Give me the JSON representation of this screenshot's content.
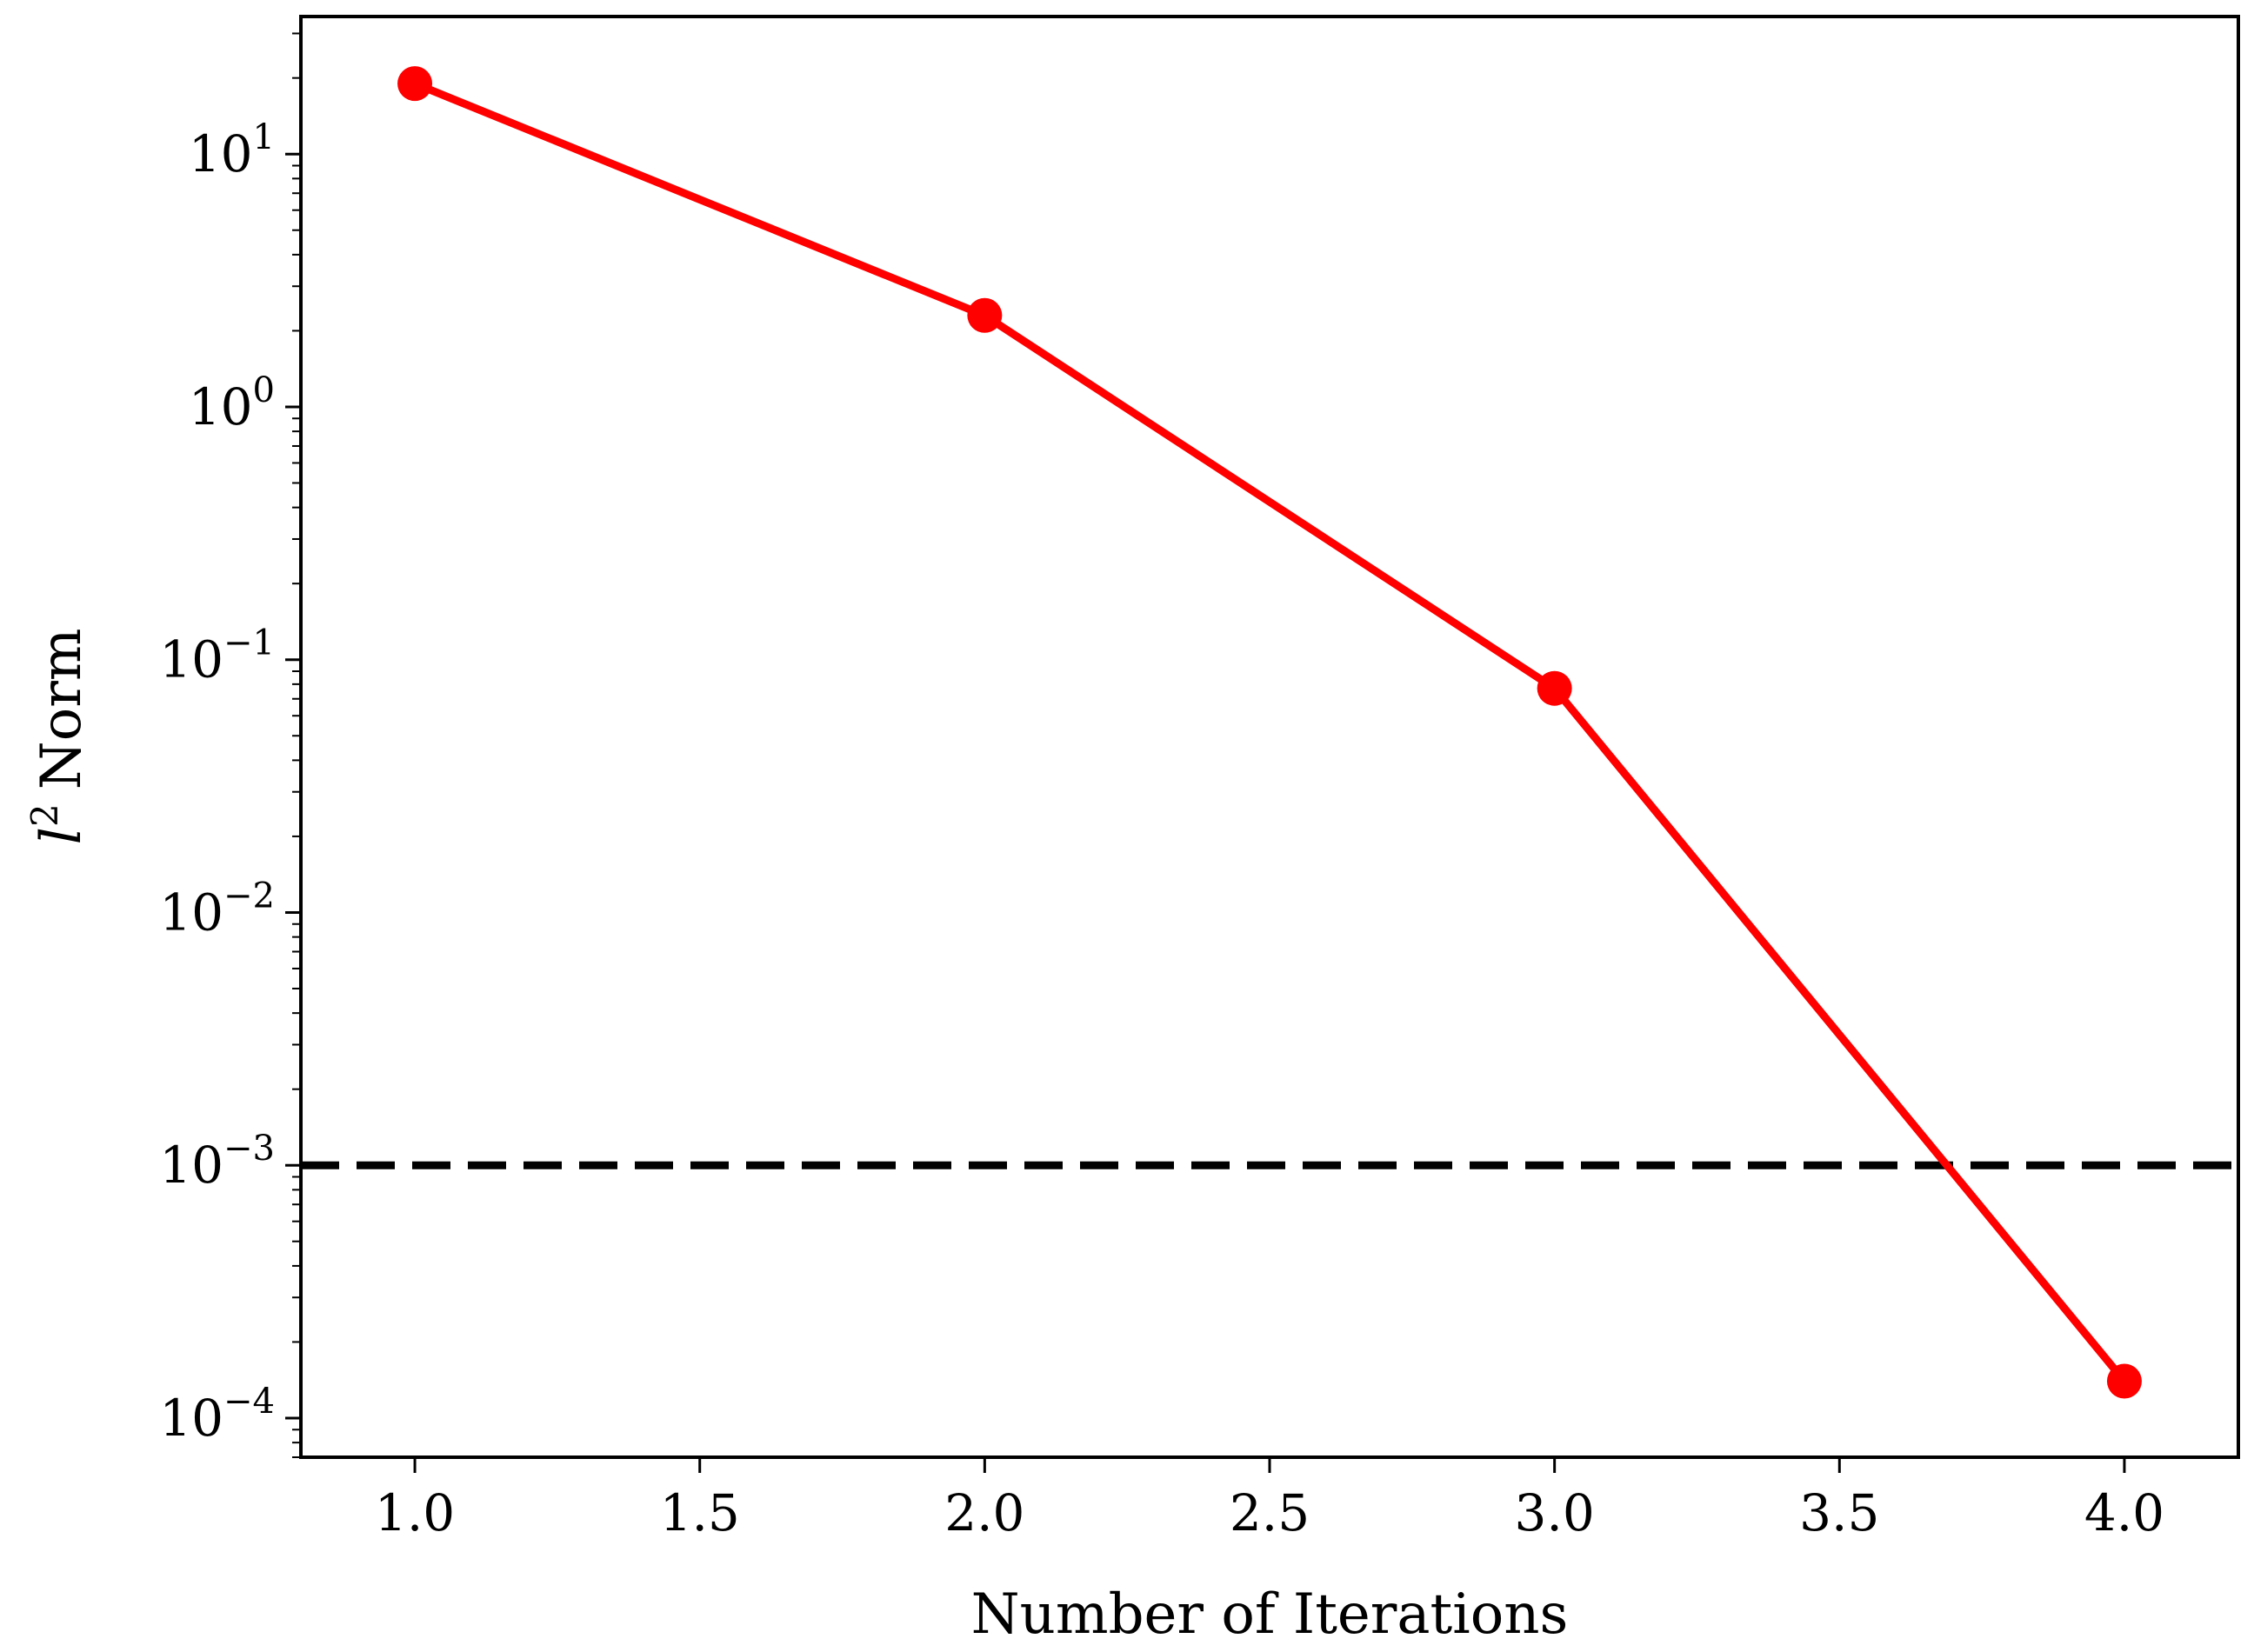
{
  "chart_data": {
    "type": "line",
    "title": "",
    "xlabel": "Number of Iterations",
    "ylabel": {
      "symbol": "l",
      "superscript": "2",
      "word": "Norm"
    },
    "xlim": [
      0.8,
      4.2
    ],
    "ylim": [
      7e-05,
      35
    ],
    "yscale": "log",
    "grid": false,
    "legend": "none",
    "x_ticks": [
      {
        "value": 1.0,
        "label": "1.0"
      },
      {
        "value": 1.5,
        "label": "1.5"
      },
      {
        "value": 2.0,
        "label": "2.0"
      },
      {
        "value": 2.5,
        "label": "2.5"
      },
      {
        "value": 3.0,
        "label": "3.0"
      },
      {
        "value": 3.5,
        "label": "3.5"
      },
      {
        "value": 4.0,
        "label": "4.0"
      }
    ],
    "y_ticks": [
      {
        "value": 10,
        "base": "10",
        "exponent": "1"
      },
      {
        "value": 1,
        "base": "10",
        "exponent": "0"
      },
      {
        "value": 0.1,
        "base": "10",
        "exponent": "−1"
      },
      {
        "value": 0.01,
        "base": "10",
        "exponent": "−2"
      },
      {
        "value": 0.001,
        "base": "10",
        "exponent": "−3"
      },
      {
        "value": 0.0001,
        "base": "10",
        "exponent": "−4"
      }
    ],
    "series": [
      {
        "x": [
          1,
          2,
          3,
          4
        ],
        "y": [
          19.0,
          2.3,
          0.077,
          0.00014
        ],
        "color": "#ff0000",
        "marker": "circle"
      }
    ],
    "reference_lines": [
      {
        "orientation": "horizontal",
        "y": 0.001,
        "style": "dashed",
        "color": "#000000"
      }
    ]
  }
}
